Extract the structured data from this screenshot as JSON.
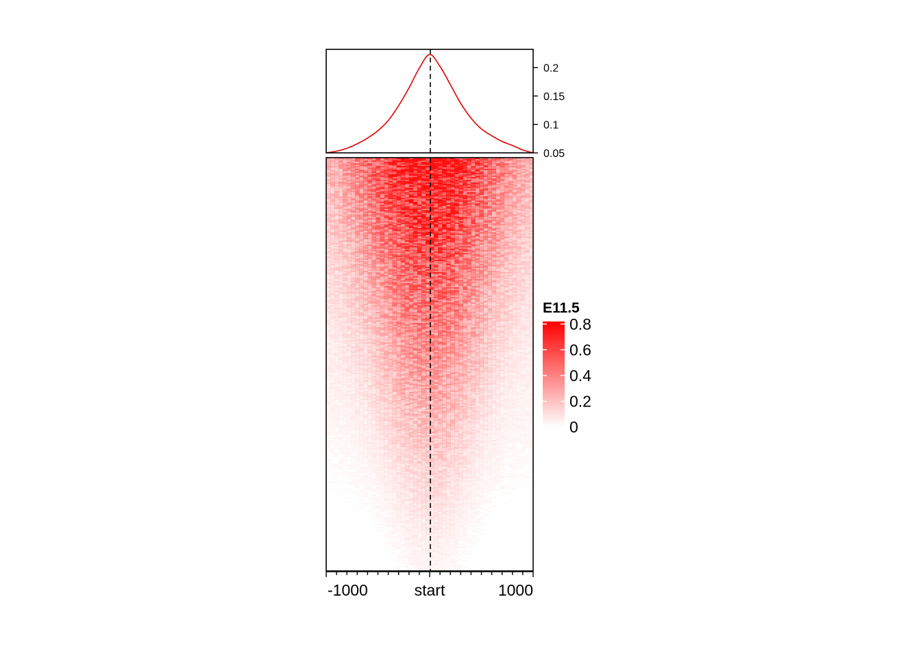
{
  "chart_data": [
    {
      "type": "line",
      "panel": "profile",
      "x": [
        -1000,
        -900,
        -800,
        -700,
        -600,
        -500,
        -400,
        -300,
        -200,
        -100,
        0,
        100,
        200,
        300,
        400,
        500,
        600,
        700,
        800,
        900,
        1000
      ],
      "series": [
        {
          "values": [
            0.05,
            0.053,
            0.058,
            0.066,
            0.076,
            0.089,
            0.107,
            0.133,
            0.164,
            0.199,
            0.223,
            0.202,
            0.17,
            0.137,
            0.111,
            0.092,
            0.08,
            0.07,
            0.063,
            0.055,
            0.05
          ],
          "color": "#e00000"
        }
      ],
      "ylim": [
        0.05,
        0.232
      ],
      "yticks": [
        "0.05",
        "0.1",
        "0.15",
        "0.2"
      ],
      "ytick_values": [
        0.05,
        0.1,
        0.15,
        0.2
      ],
      "y_axis_side": "right",
      "vline": "start",
      "vline_style": "dashed"
    },
    {
      "type": "heatmap",
      "panel": "heatmap",
      "xlim": [
        -1000,
        1000
      ],
      "xticks": [
        "-1000",
        "start",
        "1000"
      ],
      "xtick_values": [
        -1000,
        0,
        1000
      ],
      "minor_ticks_every": 100,
      "vline": "start",
      "vline_style": "dashed",
      "rows_sorted": "descending signal",
      "description_center_profile": "signal strongest at start and decaying with distance; rows sorted from strongest (top) to weakest (bottom)"
    }
  ],
  "legend": {
    "title": "E11.5",
    "labels": [
      "0.8",
      "0.6",
      "0.4",
      "0.2",
      "0"
    ],
    "label_values": [
      0.8,
      0.6,
      0.4,
      0.2,
      0
    ],
    "range": [
      0,
      0.82
    ],
    "color_low": "#ffffff",
    "color_high": "#ff0000"
  },
  "colors": {
    "line": "#e00000",
    "heat": "#ff0000",
    "frame": "#000000"
  }
}
